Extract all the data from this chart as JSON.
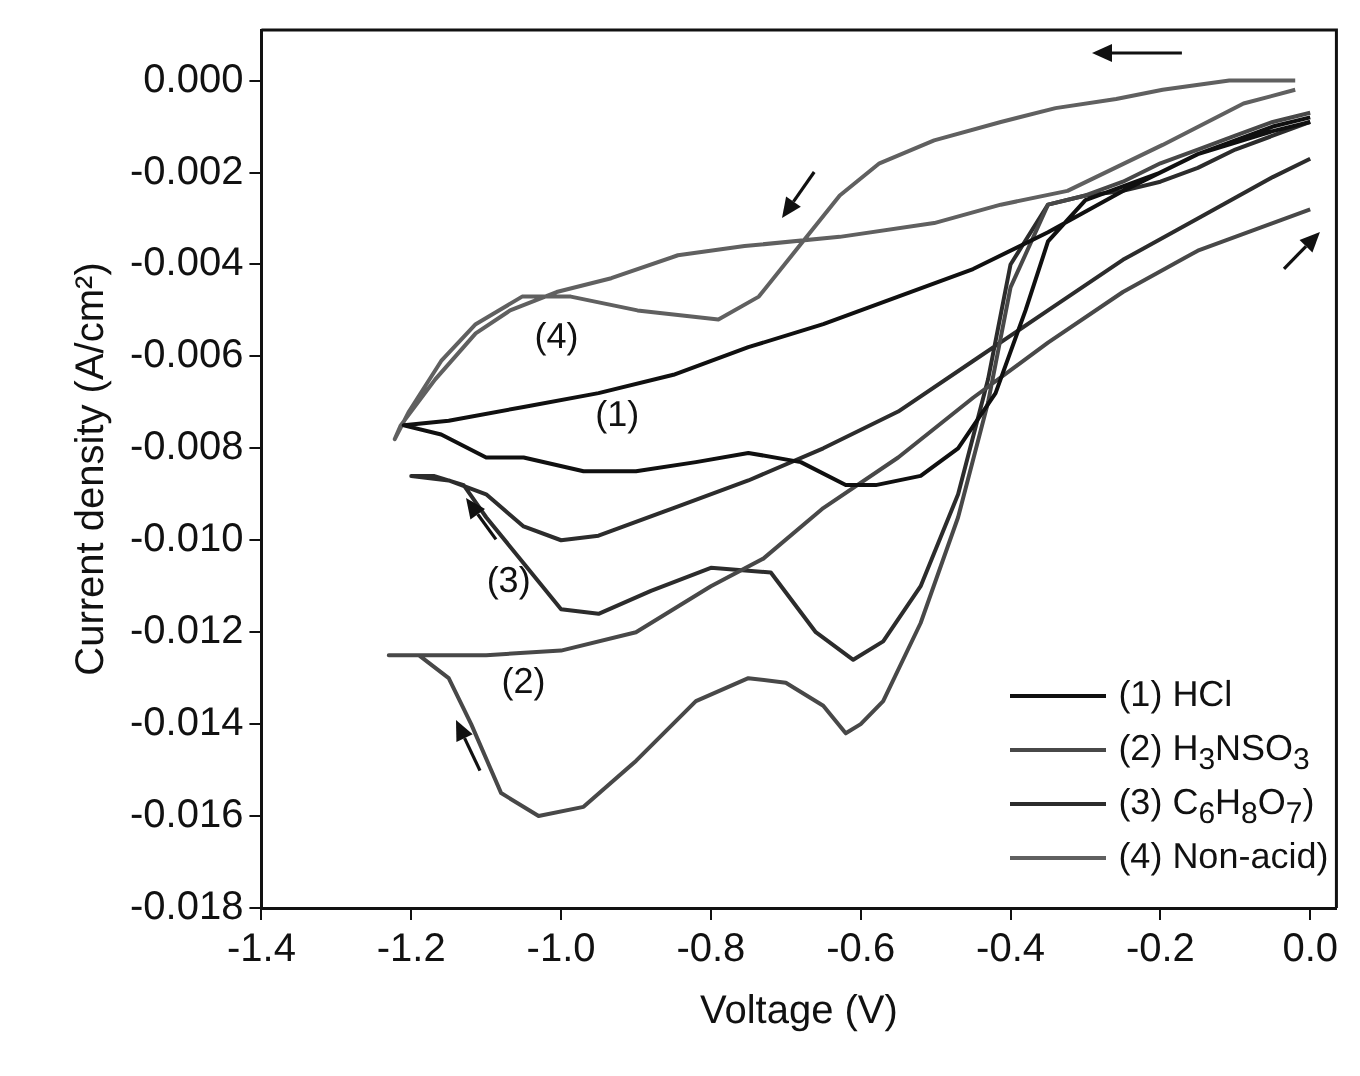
{
  "chart_data": {
    "type": "line",
    "xlabel": "Voltage (V)",
    "ylabel": "Current density (A/cm²)",
    "xlim": [
      -1.4,
      0.035
    ],
    "ylim": [
      -0.018,
      0.0011
    ],
    "xticks": [
      -1.4,
      -1.2,
      {
        "value": -1.0,
        "label": "-1.0"
      },
      -0.8,
      -0.6,
      -0.4,
      -0.2,
      {
        "value": 0,
        "label": "0.0"
      }
    ],
    "yticks": [
      {
        "value": 0,
        "label": "0.000"
      },
      -0.002,
      -0.004,
      -0.006,
      -0.008,
      {
        "value": -0.01,
        "label": "-0.010"
      },
      -0.012,
      -0.014,
      -0.016,
      -0.018
    ],
    "grid": false,
    "legend": "bottom right",
    "marker": "none",
    "line_style": "solid",
    "series": [
      {
        "name": "(1) HCl",
        "color": "#101010",
        "x": [
          0.0,
          -0.05,
          -0.1,
          -0.15,
          -0.2,
          -0.25,
          -0.3,
          -0.35,
          -0.38,
          -0.42,
          -0.47,
          -0.52,
          -0.58,
          -0.62,
          -0.68,
          -0.75,
          -0.82,
          -0.9,
          -0.97,
          -1.05,
          -1.1,
          -1.16,
          -1.21,
          -1.15,
          -1.05,
          -0.95,
          -0.85,
          -0.75,
          -0.65,
          -0.55,
          -0.45,
          -0.35,
          -0.25,
          -0.15,
          -0.05,
          0.0
        ],
        "values": [
          -0.0008,
          -0.001,
          -0.0013,
          -0.0016,
          -0.002,
          -0.0023,
          -0.0026,
          -0.0035,
          -0.005,
          -0.0068,
          -0.008,
          -0.0086,
          -0.0088,
          -0.0088,
          -0.0083,
          -0.0081,
          -0.0083,
          -0.0085,
          -0.0085,
          -0.0082,
          -0.0082,
          -0.0077,
          -0.0075,
          -0.0074,
          -0.0071,
          -0.0068,
          -0.0064,
          -0.0058,
          -0.0053,
          -0.0047,
          -0.0041,
          -0.0033,
          -0.0024,
          -0.0016,
          -0.0011,
          -0.0009
        ]
      },
      {
        "name": "(2) H$_{3}$NSO$_{3}$",
        "color": "#484848",
        "x": [
          0.0,
          -0.05,
          -0.1,
          -0.15,
          -0.2,
          -0.25,
          -0.3,
          -0.35,
          -0.4,
          -0.43,
          -0.47,
          -0.52,
          -0.57,
          -0.6,
          -0.62,
          -0.65,
          -0.7,
          -0.75,
          -0.82,
          -0.9,
          -0.97,
          -1.03,
          -1.08,
          -1.12,
          -1.15,
          -1.19,
          -1.23,
          -1.1,
          -1.0,
          -0.9,
          -0.8,
          -0.73,
          -0.65,
          -0.55,
          -0.45,
          -0.35,
          -0.25,
          -0.15,
          -0.05,
          0.0
        ],
        "values": [
          -0.0007,
          -0.0009,
          -0.0012,
          -0.0015,
          -0.0018,
          -0.0022,
          -0.0025,
          -0.0027,
          -0.0045,
          -0.007,
          -0.0095,
          -0.0118,
          -0.0135,
          -0.014,
          -0.0142,
          -0.0136,
          -0.0131,
          -0.013,
          -0.0135,
          -0.0148,
          -0.0158,
          -0.016,
          -0.0155,
          -0.014,
          -0.013,
          -0.0125,
          -0.0125,
          -0.0125,
          -0.0124,
          -0.012,
          -0.011,
          -0.0104,
          -0.0093,
          -0.0082,
          -0.0069,
          -0.0057,
          -0.0046,
          -0.0037,
          -0.0031,
          -0.0028
        ]
      },
      {
        "name": "(3) C$_{6}$H$_{8}$O$_{7}$)",
        "color": "#2c2c2c",
        "x": [
          0.0,
          -0.05,
          -0.1,
          -0.15,
          -0.2,
          -0.25,
          -0.3,
          -0.35,
          -0.4,
          -0.43,
          -0.47,
          -0.52,
          -0.57,
          -0.61,
          -0.66,
          -0.72,
          -0.8,
          -0.88,
          -0.95,
          -1.0,
          -1.05,
          -1.1,
          -1.13,
          -1.17,
          -1.2,
          -1.15,
          -1.1,
          -1.05,
          -1.0,
          -0.95,
          -0.85,
          -0.75,
          -0.65,
          -0.55,
          -0.45,
          -0.35,
          -0.25,
          -0.15,
          -0.05,
          0.0
        ],
        "values": [
          -0.0009,
          -0.0012,
          -0.0015,
          -0.0019,
          -0.0022,
          -0.0024,
          -0.0025,
          -0.0027,
          -0.004,
          -0.0065,
          -0.009,
          -0.011,
          -0.0122,
          -0.0126,
          -0.012,
          -0.0107,
          -0.0106,
          -0.0111,
          -0.0116,
          -0.0115,
          -0.0105,
          -0.0095,
          -0.0088,
          -0.0086,
          -0.0086,
          -0.0087,
          -0.009,
          -0.0097,
          -0.01,
          -0.0099,
          -0.0093,
          -0.0087,
          -0.008,
          -0.0072,
          -0.0061,
          -0.005,
          -0.0039,
          -0.003,
          -0.0021,
          -0.0017
        ]
      },
      {
        "name": "(4) Non-acid)",
        "color": "#606060",
        "x": [
          -0.02,
          -0.108,
          -0.197,
          -0.259,
          -0.34,
          -0.413,
          -0.502,
          -0.575,
          -0.628,
          -0.682,
          -0.736,
          -0.79,
          -0.844,
          -0.898,
          -0.987,
          -1.052,
          -1.114,
          -1.16,
          -1.203,
          -1.222,
          -1.214,
          -1.168,
          -1.114,
          -1.068,
          -1.006,
          -0.933,
          -0.844,
          -0.755,
          -0.628,
          -0.502,
          -0.413,
          -0.324,
          -0.197,
          -0.089,
          -0.02
        ],
        "values": [
          0.0,
          -0.0,
          -0.0002,
          -0.0004,
          -0.0006,
          -0.0009,
          -0.0013,
          -0.0018,
          -0.0025,
          -0.0036,
          -0.0047,
          -0.0052,
          -0.0051,
          -0.005,
          -0.0047,
          -0.0047,
          -0.0053,
          -0.0061,
          -0.0072,
          -0.0078,
          -0.0075,
          -0.0065,
          -0.0055,
          -0.005,
          -0.0046,
          -0.0043,
          -0.0038,
          -0.0036,
          -0.0034,
          -0.0031,
          -0.0027,
          -0.0024,
          -0.0014,
          -0.0005,
          -0.0002
        ]
      }
    ],
    "annotations": [
      "(1)",
      "(2)",
      "(3)",
      "(4)"
    ]
  }
}
